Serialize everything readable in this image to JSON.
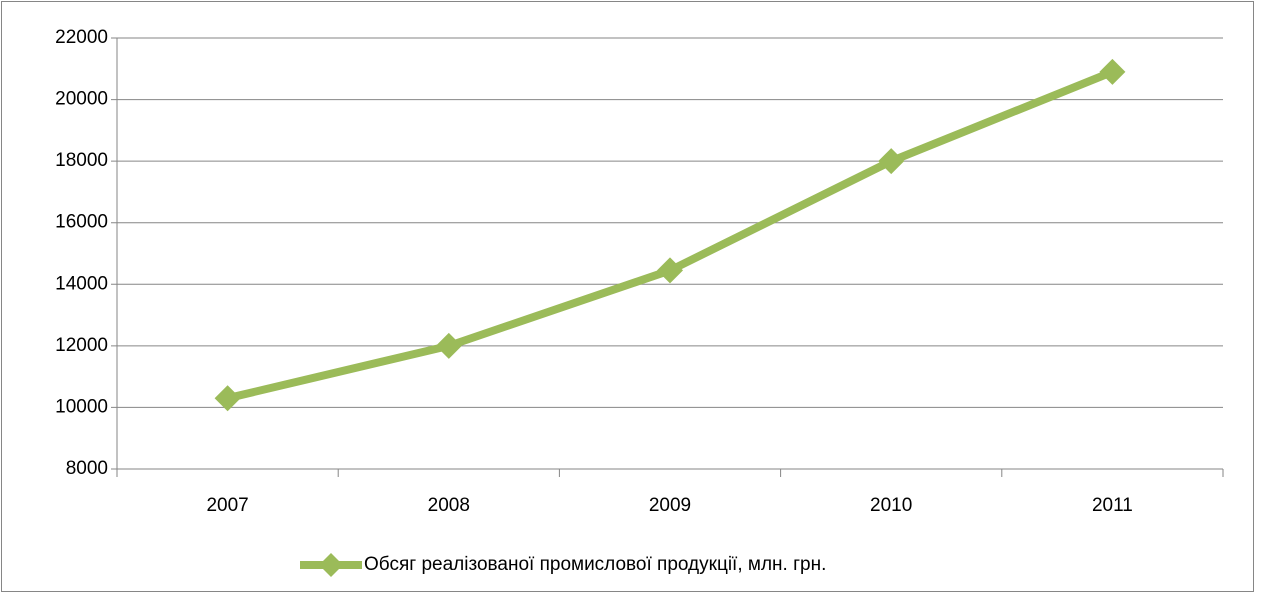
{
  "chart_data": {
    "type": "line",
    "categories": [
      "2007",
      "2008",
      "2009",
      "2010",
      "2011"
    ],
    "series": [
      {
        "name": "Обсяг реалізованої промислової продукції, млн. грн.",
        "color": "#9bbb59",
        "values": [
          10300,
          12000,
          14450,
          18000,
          20900
        ]
      }
    ],
    "ylim": [
      8000,
      22000
    ],
    "yticks": [
      8000,
      10000,
      12000,
      14000,
      16000,
      18000,
      20000,
      22000
    ],
    "grid": true,
    "legend": "bottom"
  }
}
